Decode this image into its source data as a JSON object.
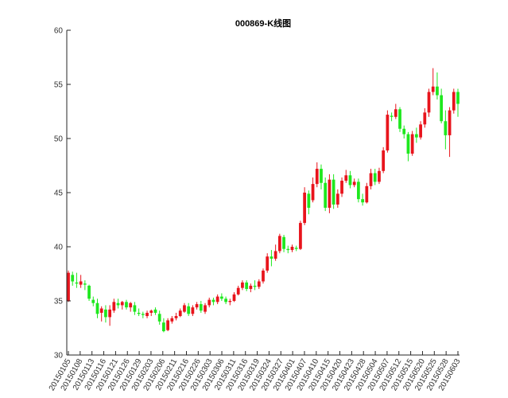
{
  "chart_data": {
    "type": "candlestick",
    "title": "000869-K线图",
    "xlabel": "",
    "ylabel": "",
    "ylim": [
      30,
      60
    ],
    "yticks": [
      30,
      35,
      40,
      45,
      50,
      55,
      60
    ],
    "grid": false,
    "colors": {
      "up": "#e8141c",
      "down": "#1ee81e"
    },
    "xtick_labels": [
      "20150105",
      "20150108",
      "20150113",
      "20150116",
      "20150121",
      "20150126",
      "20150129",
      "20150203",
      "20150206",
      "20150211",
      "20150216",
      "20150226",
      "20150303",
      "20150306",
      "20150311",
      "20150316",
      "20150319",
      "20150324",
      "20150327",
      "20150401",
      "20150407",
      "20150410",
      "20150415",
      "20150420",
      "20150423",
      "20150428",
      "20150504",
      "20150507",
      "20150512",
      "20150515",
      "20150520",
      "20150525",
      "20150528",
      "20150603"
    ],
    "candles": [
      {
        "open": 35.0,
        "high": 37.8,
        "low": 34.9,
        "close": 37.6
      },
      {
        "open": 37.4,
        "high": 37.7,
        "low": 36.4,
        "close": 36.8
      },
      {
        "open": 36.7,
        "high": 37.6,
        "low": 36.2,
        "close": 36.6
      },
      {
        "open": 36.5,
        "high": 37.4,
        "low": 36.2,
        "close": 36.8
      },
      {
        "open": 36.6,
        "high": 36.9,
        "low": 36.0,
        "close": 36.5
      },
      {
        "open": 36.4,
        "high": 36.5,
        "low": 35.0,
        "close": 35.2
      },
      {
        "open": 35.1,
        "high": 35.4,
        "low": 34.5,
        "close": 34.8
      },
      {
        "open": 34.8,
        "high": 35.2,
        "low": 33.4,
        "close": 33.8
      },
      {
        "open": 33.9,
        "high": 34.5,
        "low": 33.1,
        "close": 34.3
      },
      {
        "open": 34.2,
        "high": 34.6,
        "low": 33.0,
        "close": 33.5
      },
      {
        "open": 33.5,
        "high": 34.6,
        "low": 32.7,
        "close": 34.2
      },
      {
        "open": 34.1,
        "high": 35.2,
        "low": 33.9,
        "close": 34.9
      },
      {
        "open": 34.8,
        "high": 35.2,
        "low": 34.3,
        "close": 34.6
      },
      {
        "open": 34.6,
        "high": 35.0,
        "low": 34.2,
        "close": 34.9
      },
      {
        "open": 34.9,
        "high": 35.1,
        "low": 34.2,
        "close": 34.4
      },
      {
        "open": 34.4,
        "high": 34.9,
        "low": 34.0,
        "close": 34.8
      },
      {
        "open": 34.6,
        "high": 34.9,
        "low": 33.7,
        "close": 34.0
      },
      {
        "open": 33.9,
        "high": 34.3,
        "low": 33.6,
        "close": 33.8
      },
      {
        "open": 33.8,
        "high": 34.0,
        "low": 33.4,
        "close": 33.7
      },
      {
        "open": 33.6,
        "high": 34.1,
        "low": 33.4,
        "close": 33.9
      },
      {
        "open": 33.9,
        "high": 34.2,
        "low": 33.6,
        "close": 34.1
      },
      {
        "open": 34.2,
        "high": 34.4,
        "low": 33.7,
        "close": 33.9
      },
      {
        "open": 33.8,
        "high": 34.1,
        "low": 32.8,
        "close": 33.1
      },
      {
        "open": 33.0,
        "high": 33.4,
        "low": 32.1,
        "close": 32.2
      },
      {
        "open": 32.3,
        "high": 33.4,
        "low": 32.2,
        "close": 33.2
      },
      {
        "open": 33.1,
        "high": 33.6,
        "low": 32.9,
        "close": 33.4
      },
      {
        "open": 33.4,
        "high": 33.9,
        "low": 33.2,
        "close": 33.6
      },
      {
        "open": 33.6,
        "high": 34.3,
        "low": 33.5,
        "close": 34.1
      },
      {
        "open": 34.0,
        "high": 34.8,
        "low": 33.9,
        "close": 34.6
      },
      {
        "open": 34.5,
        "high": 34.8,
        "low": 33.6,
        "close": 33.8
      },
      {
        "open": 33.8,
        "high": 34.6,
        "low": 33.6,
        "close": 34.4
      },
      {
        "open": 34.4,
        "high": 34.9,
        "low": 34.2,
        "close": 34.7
      },
      {
        "open": 34.7,
        "high": 35.0,
        "low": 33.9,
        "close": 34.1
      },
      {
        "open": 34.0,
        "high": 34.8,
        "low": 33.8,
        "close": 34.6
      },
      {
        "open": 34.6,
        "high": 35.3,
        "low": 34.4,
        "close": 35.1
      },
      {
        "open": 35.1,
        "high": 35.3,
        "low": 34.6,
        "close": 34.9
      },
      {
        "open": 34.9,
        "high": 35.6,
        "low": 34.7,
        "close": 35.4
      },
      {
        "open": 35.4,
        "high": 35.7,
        "low": 35.0,
        "close": 35.2
      },
      {
        "open": 35.2,
        "high": 35.4,
        "low": 34.7,
        "close": 34.9
      },
      {
        "open": 34.9,
        "high": 35.2,
        "low": 34.6,
        "close": 35.0
      },
      {
        "open": 35.0,
        "high": 35.8,
        "low": 34.9,
        "close": 35.6
      },
      {
        "open": 35.6,
        "high": 36.4,
        "low": 35.5,
        "close": 36.2
      },
      {
        "open": 36.2,
        "high": 36.9,
        "low": 36.0,
        "close": 36.7
      },
      {
        "open": 36.7,
        "high": 36.9,
        "low": 35.9,
        "close": 36.1
      },
      {
        "open": 36.1,
        "high": 36.6,
        "low": 35.8,
        "close": 36.4
      },
      {
        "open": 36.4,
        "high": 36.9,
        "low": 36.0,
        "close": 36.3
      },
      {
        "open": 36.3,
        "high": 37.0,
        "low": 36.1,
        "close": 36.8
      },
      {
        "open": 36.8,
        "high": 38.0,
        "low": 36.6,
        "close": 37.8
      },
      {
        "open": 37.8,
        "high": 39.4,
        "low": 37.6,
        "close": 39.1
      },
      {
        "open": 39.1,
        "high": 39.7,
        "low": 38.2,
        "close": 38.9
      },
      {
        "open": 38.9,
        "high": 40.2,
        "low": 38.7,
        "close": 39.6
      },
      {
        "open": 39.6,
        "high": 41.2,
        "low": 39.4,
        "close": 41.0
      },
      {
        "open": 40.9,
        "high": 41.1,
        "low": 39.5,
        "close": 39.8
      },
      {
        "open": 39.8,
        "high": 40.1,
        "low": 39.4,
        "close": 39.7
      },
      {
        "open": 39.7,
        "high": 40.2,
        "low": 39.5,
        "close": 40.0
      },
      {
        "open": 39.9,
        "high": 40.1,
        "low": 39.6,
        "close": 39.8
      },
      {
        "open": 39.8,
        "high": 42.4,
        "low": 39.7,
        "close": 42.2
      },
      {
        "open": 42.2,
        "high": 45.5,
        "low": 42.0,
        "close": 45.0
      },
      {
        "open": 44.9,
        "high": 45.2,
        "low": 43.0,
        "close": 43.6
      },
      {
        "open": 44.3,
        "high": 46.4,
        "low": 44.1,
        "close": 45.8
      },
      {
        "open": 45.8,
        "high": 47.8,
        "low": 45.5,
        "close": 47.2
      },
      {
        "open": 47.2,
        "high": 47.6,
        "low": 45.3,
        "close": 45.9
      },
      {
        "open": 45.9,
        "high": 46.4,
        "low": 43.3,
        "close": 43.6
      },
      {
        "open": 43.6,
        "high": 46.7,
        "low": 43.1,
        "close": 46.2
      },
      {
        "open": 46.2,
        "high": 46.7,
        "low": 43.5,
        "close": 43.9
      },
      {
        "open": 43.9,
        "high": 45.3,
        "low": 43.6,
        "close": 44.9
      },
      {
        "open": 44.9,
        "high": 46.4,
        "low": 44.6,
        "close": 46.1
      },
      {
        "open": 46.1,
        "high": 47.1,
        "low": 45.9,
        "close": 46.6
      },
      {
        "open": 46.6,
        "high": 47.0,
        "low": 45.4,
        "close": 45.7
      },
      {
        "open": 45.7,
        "high": 46.3,
        "low": 45.5,
        "close": 46.0
      },
      {
        "open": 46.0,
        "high": 46.3,
        "low": 44.1,
        "close": 44.4
      },
      {
        "open": 44.4,
        "high": 44.9,
        "low": 43.8,
        "close": 44.1
      },
      {
        "open": 44.1,
        "high": 45.9,
        "low": 44.0,
        "close": 45.6
      },
      {
        "open": 45.6,
        "high": 47.2,
        "low": 45.3,
        "close": 46.8
      },
      {
        "open": 46.8,
        "high": 47.2,
        "low": 45.7,
        "close": 46.0
      },
      {
        "open": 46.0,
        "high": 47.3,
        "low": 45.8,
        "close": 47.0
      },
      {
        "open": 47.0,
        "high": 49.2,
        "low": 46.8,
        "close": 48.9
      },
      {
        "open": 48.9,
        "high": 52.6,
        "low": 48.7,
        "close": 52.2
      },
      {
        "open": 52.1,
        "high": 52.4,
        "low": 51.6,
        "close": 52.0
      },
      {
        "open": 52.0,
        "high": 53.2,
        "low": 51.8,
        "close": 52.7
      },
      {
        "open": 52.7,
        "high": 52.9,
        "low": 50.6,
        "close": 50.9
      },
      {
        "open": 50.9,
        "high": 51.2,
        "low": 50.0,
        "close": 50.4
      },
      {
        "open": 50.4,
        "high": 50.6,
        "low": 47.9,
        "close": 48.6
      },
      {
        "open": 48.6,
        "high": 50.7,
        "low": 48.4,
        "close": 50.4
      },
      {
        "open": 50.4,
        "high": 51.0,
        "low": 49.6,
        "close": 50.1
      },
      {
        "open": 50.1,
        "high": 51.6,
        "low": 49.9,
        "close": 51.3
      },
      {
        "open": 51.3,
        "high": 52.8,
        "low": 51.0,
        "close": 52.4
      },
      {
        "open": 52.4,
        "high": 54.6,
        "low": 52.0,
        "close": 54.3
      },
      {
        "open": 54.3,
        "high": 56.5,
        "low": 54.0,
        "close": 54.8
      },
      {
        "open": 54.8,
        "high": 56.1,
        "low": 53.6,
        "close": 54.0
      },
      {
        "open": 54.0,
        "high": 54.6,
        "low": 51.4,
        "close": 51.6
      },
      {
        "open": 51.6,
        "high": 52.6,
        "low": 49.0,
        "close": 50.3
      },
      {
        "open": 50.3,
        "high": 52.9,
        "low": 48.3,
        "close": 52.6
      },
      {
        "open": 52.6,
        "high": 54.6,
        "low": 52.3,
        "close": 54.3
      },
      {
        "open": 54.3,
        "high": 54.6,
        "low": 52.0,
        "close": 53.2
      }
    ]
  }
}
